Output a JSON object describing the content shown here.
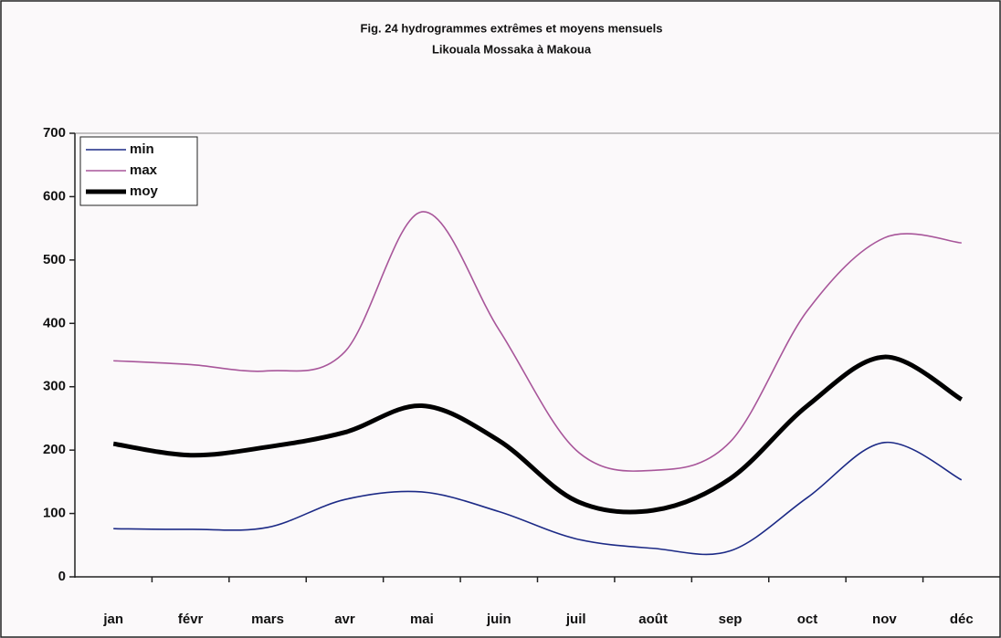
{
  "chart_data": {
    "type": "line",
    "title": [
      "Fig. 24 hydrogrammes extrêmes et moyens mensuels",
      "Likouala Mossaka à Makoua"
    ],
    "categories": [
      "jan",
      "févr",
      "mars",
      "avr",
      "mai",
      "juin",
      "juil",
      "août",
      "sep",
      "oct",
      "nov",
      "déc"
    ],
    "series": [
      {
        "name": "min",
        "color": "#1c2a86",
        "values": [
          76,
          75,
          78,
          122,
          134,
          103,
          60,
          45,
          41,
          125,
          212,
          153
        ]
      },
      {
        "name": "max",
        "color": "#a8569a",
        "values": [
          341,
          335,
          325,
          355,
          576,
          390,
          200,
          168,
          213,
          420,
          535,
          527
        ]
      },
      {
        "name": "moy",
        "color": "#000000",
        "values": [
          210,
          192,
          205,
          228,
          270,
          215,
          120,
          105,
          155,
          270,
          347,
          280
        ]
      }
    ],
    "ylim": [
      0,
      700
    ],
    "yticks": [
      0,
      100,
      200,
      300,
      400,
      500,
      600,
      700
    ],
    "grid": false,
    "legend": "top-left"
  }
}
